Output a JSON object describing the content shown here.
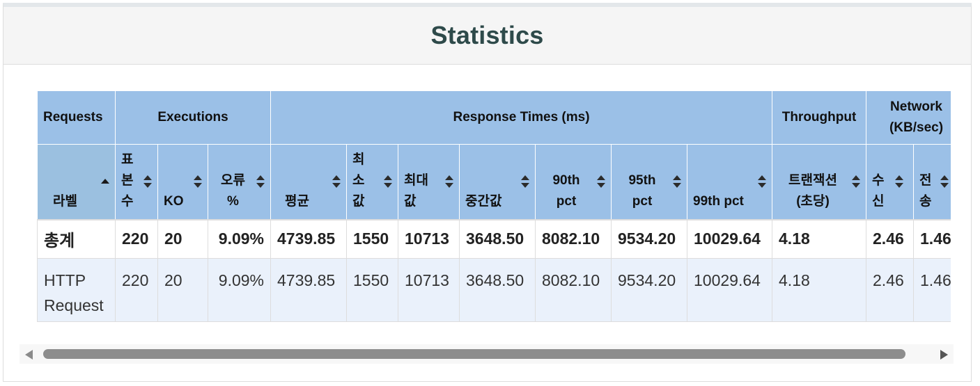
{
  "panel": {
    "title": "Statistics"
  },
  "table": {
    "group_headers": {
      "requests": "Requests",
      "executions": "Executions",
      "response_times": "Response Times (ms)",
      "throughput": "Throughput",
      "network": "Network (KB/sec)"
    },
    "columns": {
      "label": "라벨",
      "samples": "표본수",
      "ko": "KO",
      "error_pct": "오류 %",
      "average": "평균",
      "min": "최소값",
      "max": "최대값",
      "median": "중간값",
      "pct90": "90th pct",
      "pct95": "95th pct",
      "pct99": "99th pct",
      "transactions": "트랜잭션 (초당)",
      "received": "수신",
      "sent": "전송"
    },
    "total_row": {
      "label": "총계",
      "samples": "220",
      "ko": "20",
      "error_pct": "9.09%",
      "average": "4739.85",
      "min": "1550",
      "max": "10713",
      "median": "3648.50",
      "pct90": "8082.10",
      "pct95": "9534.20",
      "pct99": "10029.64",
      "transactions": "4.18",
      "received": "2.46",
      "sent": "1.46"
    },
    "rows": [
      {
        "label": "HTTP Request",
        "samples": "220",
        "ko": "20",
        "error_pct": "9.09%",
        "average": "4739.85",
        "min": "1550",
        "max": "10713",
        "median": "3648.50",
        "pct90": "8082.10",
        "pct95": "9534.20",
        "pct99": "10029.64",
        "transactions": "4.18",
        "received": "2.46",
        "sent": "1.46"
      }
    ]
  },
  "colors": {
    "header_bg": "#9bc0e7",
    "row_bg": "#eaf1fb",
    "title_color": "#2e4a4a"
  },
  "icons": {
    "sort": "sort-both-icon",
    "sorted_asc": "sort-asc-icon",
    "scroll_left": "scroll-left-arrow-icon",
    "scroll_right": "scroll-right-arrow-icon"
  }
}
